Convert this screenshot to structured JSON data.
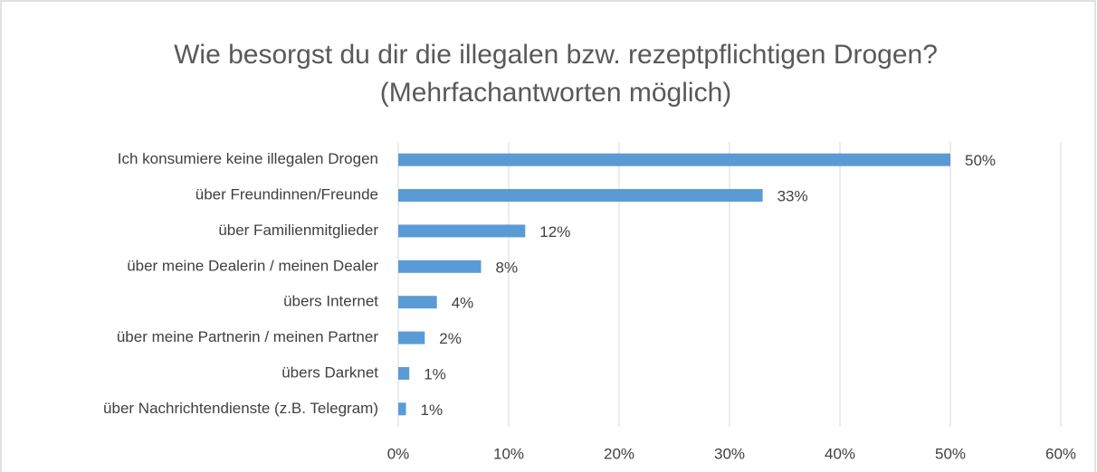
{
  "chart_data": {
    "type": "hbar",
    "title": "Wie besorgst du dir die illegalen bzw. rezeptpflichtigen Drogen? (Mehrfachantworten möglich)",
    "categories": [
      "Ich konsumiere keine illegalen Drogen",
      "über Freundinnen/Freunde",
      "über Familienmitglieder",
      "über meine Dealerin / meinen Dealer",
      "übers Internet",
      "über meine Partnerin / meinen Partner",
      "übers Darknet",
      "über Nachrichtendienste (z.B. Telegram)"
    ],
    "values": [
      50,
      33,
      11.5,
      7.5,
      3.5,
      2.4,
      1,
      0.7
    ],
    "value_labels": [
      "50%",
      "33%",
      "12%",
      "8%",
      "4%",
      "2%",
      "1%",
      "1%"
    ],
    "color": "#5b9bd5",
    "xlim": [
      0,
      60
    ],
    "xticks": [
      {
        "value": 0,
        "label": "0%"
      },
      {
        "value": 10,
        "label": "10%"
      },
      {
        "value": 20,
        "label": "20%"
      },
      {
        "value": 30,
        "label": "30%"
      },
      {
        "value": 40,
        "label": "40%"
      },
      {
        "value": 50,
        "label": "50%"
      },
      {
        "value": 60,
        "label": "60%"
      }
    ],
    "grid": true
  }
}
